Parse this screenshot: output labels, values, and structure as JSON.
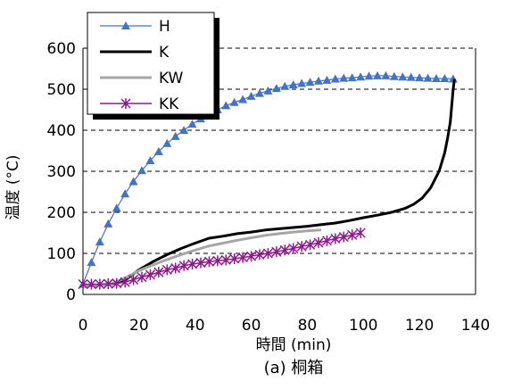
{
  "chart_data": {
    "type": "line",
    "xlabel": "時間 (min)",
    "ylabel": "温度 (°C)",
    "caption": "(a) 桐箱",
    "xlim": [
      0,
      140
    ],
    "ylim": [
      0,
      600
    ],
    "xticks": [
      0,
      20,
      40,
      60,
      80,
      100,
      120,
      140
    ],
    "yticks": [
      0,
      100,
      200,
      300,
      400,
      500,
      600
    ],
    "grid": "horizontal-dashed",
    "legend_position": "top-left",
    "series": [
      {
        "name": "H",
        "color": "#4472c4",
        "marker": "triangle",
        "x": [
          0,
          3,
          6,
          9,
          12,
          15,
          18,
          21,
          24,
          27,
          30,
          33,
          36,
          39,
          42,
          45,
          48,
          51,
          54,
          57,
          60,
          63,
          66,
          69,
          72,
          75,
          78,
          81,
          84,
          87,
          90,
          93,
          96,
          99,
          102,
          105,
          108,
          111,
          114,
          117,
          120,
          123,
          126,
          129,
          132
        ],
        "y": [
          25,
          78,
          128,
          172,
          210,
          245,
          275,
          302,
          326,
          348,
          368,
          385,
          400,
          415,
          428,
          440,
          450,
          460,
          468,
          475,
          483,
          490,
          496,
          502,
          507,
          511,
          514,
          517,
          520,
          522,
          525,
          527,
          528,
          530,
          532,
          533,
          533,
          531,
          530,
          529,
          528,
          527,
          526,
          526,
          525
        ]
      },
      {
        "name": "K",
        "color": "#000000",
        "marker": "none",
        "x": [
          0,
          5,
          10,
          15,
          20,
          25,
          30,
          35,
          40,
          45,
          50,
          55,
          60,
          65,
          70,
          75,
          80,
          85,
          90,
          95,
          100,
          105,
          110,
          115,
          118,
          121,
          124,
          127,
          129,
          130,
          131,
          131.5,
          132,
          132.5
        ],
        "y": [
          22,
          22,
          25,
          35,
          60,
          80,
          97,
          112,
          125,
          137,
          142,
          148,
          152,
          157,
          160,
          163,
          166,
          170,
          174,
          180,
          187,
          193,
          200,
          210,
          220,
          235,
          260,
          300,
          345,
          380,
          420,
          460,
          500,
          525
        ]
      },
      {
        "name": "KW",
        "color": "#a6a6a6",
        "marker": "none",
        "x": [
          0,
          5,
          10,
          15,
          20,
          25,
          30,
          35,
          40,
          45,
          50,
          55,
          60,
          65,
          70,
          75,
          80,
          85
        ],
        "y": [
          20,
          21,
          25,
          40,
          58,
          72,
          85,
          97,
          108,
          118,
          125,
          132,
          138,
          144,
          148,
          152,
          155,
          157
        ]
      },
      {
        "name": "KK",
        "color": "#8b1a8b",
        "marker": "star",
        "x": [
          0,
          3,
          6,
          9,
          12,
          15,
          18,
          21,
          24,
          27,
          30,
          33,
          36,
          39,
          42,
          45,
          48,
          51,
          54,
          57,
          60,
          63,
          66,
          69,
          72,
          75,
          78,
          81,
          84,
          87,
          90,
          93,
          96,
          99
        ],
        "y": [
          25,
          25,
          25,
          26,
          27,
          30,
          36,
          42,
          48,
          54,
          60,
          64,
          70,
          74,
          77,
          80,
          82,
          84,
          87,
          90,
          93,
          97,
          100,
          104,
          108,
          112,
          117,
          121,
          126,
          131,
          136,
          140,
          145,
          150
        ]
      }
    ]
  }
}
